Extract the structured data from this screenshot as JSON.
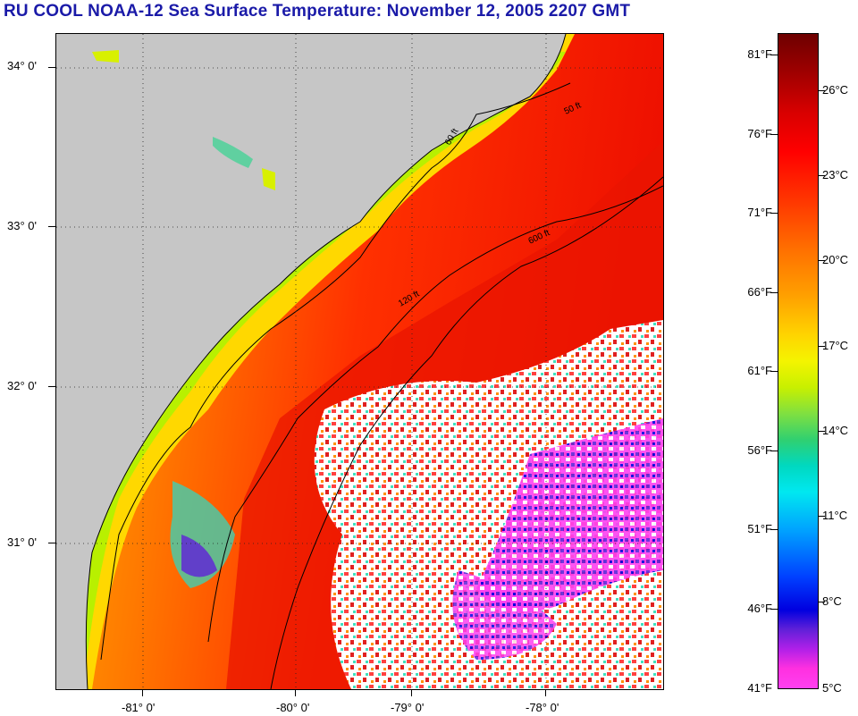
{
  "title": "RU COOL  NOAA-12  Sea Surface Temperature:  November 12, 2005 2207 GMT",
  "axes": {
    "latitude_labels": [
      "34° 0'",
      "33° 0'",
      "32° 0'",
      "31° 0'"
    ],
    "longitude_labels": [
      "-81° 0'",
      "-80° 0'",
      "-79° 0'",
      "-78° 0'"
    ]
  },
  "isobaths": [
    "50 ft",
    "60 ft",
    "120 ft",
    "600 ft"
  ],
  "colorbar": {
    "fahrenheit_labels": [
      "81°F",
      "76°F",
      "71°F",
      "66°F",
      "61°F",
      "56°F",
      "51°F",
      "46°F",
      "41°F"
    ],
    "celsius_labels": [
      "26°C",
      "23°C",
      "20°C",
      "17°C",
      "14°C",
      "11°C",
      "8°C",
      "5°C"
    ],
    "colors": {
      "max": "#6e0000",
      "warm": "#ff0000",
      "mid": "#f4f400",
      "cool": "#00e8f0",
      "cold": "#0000e0",
      "min": "#ff40f0"
    }
  },
  "map_colors": {
    "land": "#c6c6c6",
    "cloud": "#ffffff"
  }
}
